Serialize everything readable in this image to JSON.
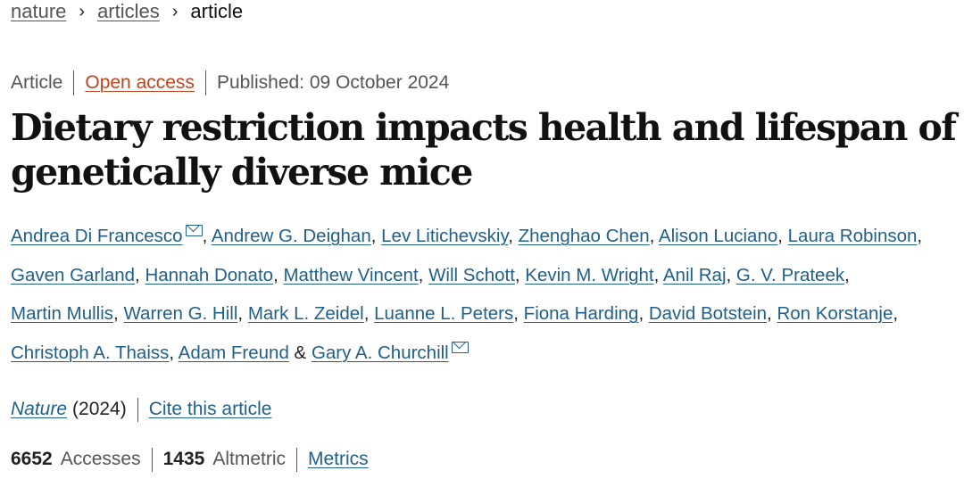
{
  "breadcrumb": {
    "items": [
      {
        "label": "nature"
      },
      {
        "label": "articles"
      }
    ],
    "current": "article",
    "separator": "›"
  },
  "meta": {
    "type": "Article",
    "access": "Open access",
    "published": "Published: 09 October 2024"
  },
  "title": "Dietary restriction impacts health and lifespan of genetically diverse mice",
  "authors": [
    {
      "name": "Andrea Di Francesco",
      "mail": true
    },
    {
      "name": "Andrew G. Deighan"
    },
    {
      "name": "Lev Litichevskiy"
    },
    {
      "name": "Zhenghao Chen"
    },
    {
      "name": "Alison Luciano"
    },
    {
      "name": "Laura Robinson"
    },
    {
      "name": "Gaven Garland"
    },
    {
      "name": "Hannah Donato"
    },
    {
      "name": "Matthew Vincent"
    },
    {
      "name": "Will Schott"
    },
    {
      "name": "Kevin M. Wright"
    },
    {
      "name": "Anil Raj"
    },
    {
      "name": "G. V. Prateek"
    },
    {
      "name": "Martin Mullis"
    },
    {
      "name": "Warren G. Hill"
    },
    {
      "name": "Mark L. Zeidel"
    },
    {
      "name": "Luanne L. Peters"
    },
    {
      "name": "Fiona Harding"
    },
    {
      "name": "David Botstein"
    },
    {
      "name": "Ron Korstanje"
    },
    {
      "name": "Christoph A. Thaiss"
    },
    {
      "name": "Adam Freund"
    },
    {
      "name": "Gary A. Churchill",
      "mail": true
    }
  ],
  "author_conjunction": "&",
  "citation": {
    "journal": "Nature",
    "year": "(2024)",
    "cite_link": "Cite this article"
  },
  "metrics": {
    "accesses_count": "6652",
    "accesses_label": "Accesses",
    "altmetric_count": "1435",
    "altmetric_label": "Altmetric",
    "metrics_link": "Metrics"
  },
  "colors": {
    "link": "#1f5f8b",
    "open_access": "#c0441d",
    "muted_text": "#555555",
    "title": "#111111"
  },
  "icons": {
    "breadcrumb_separator": "chevron-right-icon",
    "author_contact": "mail-icon"
  }
}
